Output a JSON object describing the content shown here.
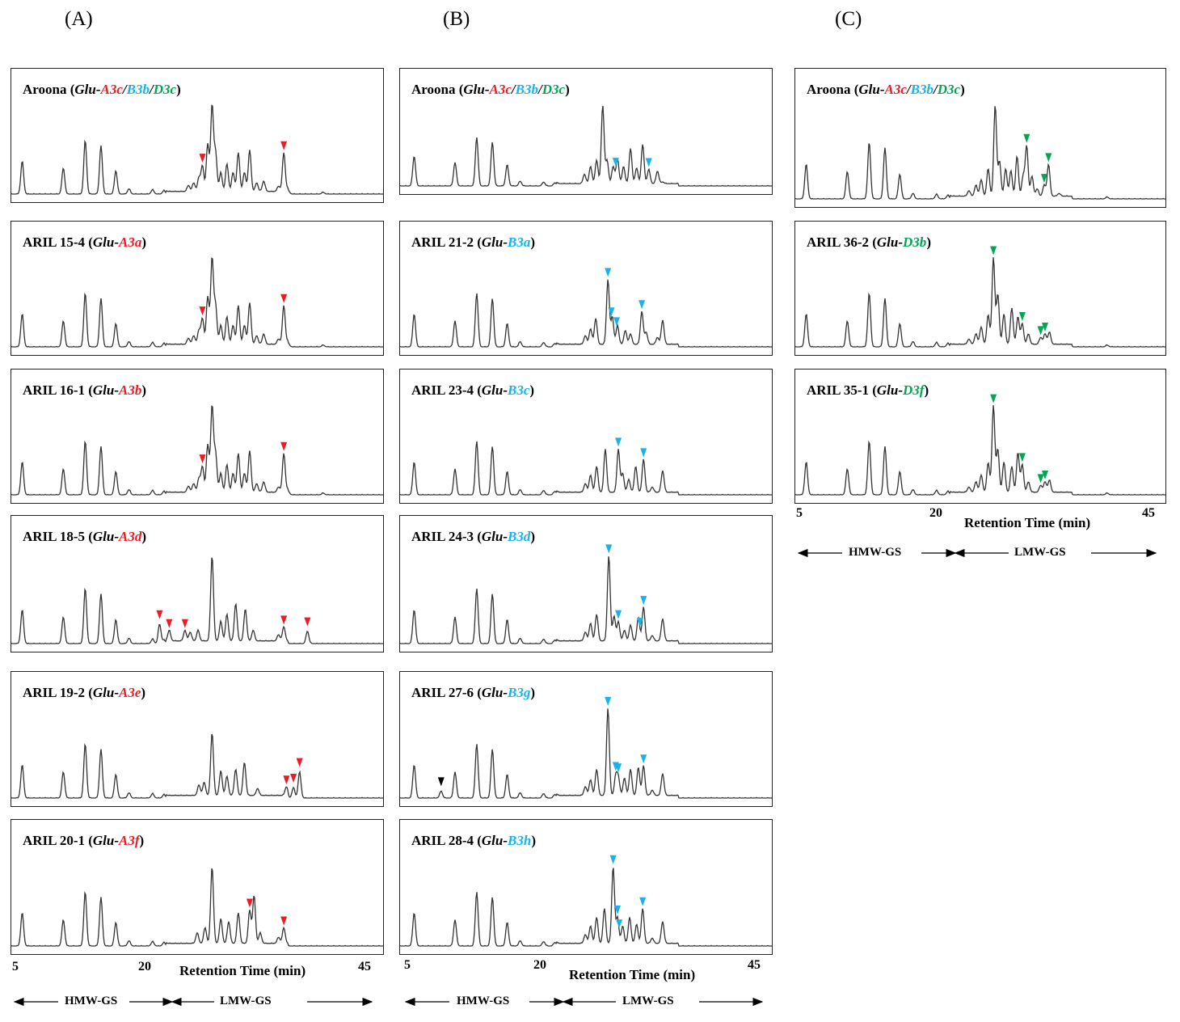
{
  "col_labels": [
    "(A)",
    "(B)",
    "(C)"
  ],
  "colors": {
    "A3": "#ed1c24",
    "B3": "#19b2ea",
    "D3": "#00a651",
    "other": "#000000",
    "trace": "#333333"
  },
  "chart_data": [
    {
      "type": "line",
      "column": "A",
      "panels": [
        {
          "line": "Aroona",
          "alleles": [
            [
              "A3c",
              "A3"
            ],
            [
              "B3b",
              "B3"
            ],
            [
              "D3c",
              "D3"
            ]
          ],
          "trace": "base",
          "markers": [
            [
              26.2,
              "A3"
            ],
            [
              35.5,
              "A3"
            ]
          ]
        },
        {
          "line": "ARIL 15-4",
          "alleles": [
            [
              "A3a",
              "A3"
            ]
          ],
          "trace": "base",
          "markers": [
            [
              26.2,
              "A3"
            ],
            [
              35.5,
              "A3"
            ]
          ]
        },
        {
          "line": "ARIL 16-1",
          "alleles": [
            [
              "A3b",
              "A3"
            ]
          ],
          "trace": "base",
          "markers": [
            [
              26.2,
              "A3"
            ],
            [
              35.5,
              "A3"
            ]
          ]
        },
        {
          "line": "ARIL 18-5",
          "alleles": [
            [
              "A3d",
              "A3"
            ]
          ],
          "trace": "a3d",
          "markers": [
            [
              21.3,
              "A3"
            ],
            [
              22.4,
              "A3"
            ],
            [
              24.2,
              "A3"
            ],
            [
              35.5,
              "A3"
            ],
            [
              38.2,
              "A3"
            ]
          ]
        },
        {
          "line": "ARIL 19-2",
          "alleles": [
            [
              "A3e",
              "A3"
            ]
          ],
          "trace": "a3e",
          "markers": [
            [
              35.8,
              "A3"
            ],
            [
              36.6,
              "A3"
            ],
            [
              37.3,
              "A3"
            ]
          ]
        },
        {
          "line": "ARIL 20-1",
          "alleles": [
            [
              "A3f",
              "A3"
            ]
          ],
          "trace": "a3f",
          "markers": [
            [
              31.6,
              "A3"
            ],
            [
              35.5,
              "A3"
            ]
          ]
        }
      ]
    },
    {
      "type": "line",
      "column": "B",
      "panels": [
        {
          "line": "Aroona",
          "alleles": [
            [
              "A3c",
              "A3"
            ],
            [
              "B3b",
              "B3"
            ],
            [
              "D3c",
              "D3"
            ]
          ],
          "trace": "baseB",
          "markers": [
            [
              28.8,
              "B3"
            ],
            [
              32.6,
              "B3"
            ]
          ]
        },
        {
          "line": "ARIL 21-2",
          "alleles": [
            [
              "B3a",
              "B3"
            ]
          ],
          "trace": "b3a",
          "markers": [
            [
              27.9,
              "B3"
            ],
            [
              28.3,
              "B3"
            ],
            [
              28.9,
              "B3"
            ],
            [
              31.8,
              "B3"
            ]
          ]
        },
        {
          "line": "ARIL 23-4",
          "alleles": [
            [
              "B3c",
              "B3"
            ]
          ],
          "trace": "b3c",
          "markers": [
            [
              29.1,
              "B3"
            ],
            [
              32.0,
              "B3"
            ]
          ]
        },
        {
          "line": "ARIL 24-3",
          "alleles": [
            [
              "B3d",
              "B3"
            ]
          ],
          "trace": "b3d",
          "markers": [
            [
              28.0,
              "B3"
            ],
            [
              29.1,
              "B3"
            ],
            [
              31.6,
              "B3"
            ],
            [
              32.0,
              "B3"
            ]
          ]
        },
        {
          "line": "ARIL 27-6",
          "alleles": [
            [
              "B3g",
              "B3"
            ]
          ],
          "trace": "b3g",
          "markers": [
            [
              8.7,
              "other"
            ],
            [
              27.9,
              "B3"
            ],
            [
              28.8,
              "B3"
            ],
            [
              29.1,
              "B3"
            ],
            [
              32.0,
              "B3"
            ]
          ]
        },
        {
          "line": "ARIL 28-4",
          "alleles": [
            [
              "B3h",
              "B3"
            ]
          ],
          "trace": "b3h",
          "markers": [
            [
              28.5,
              "B3"
            ],
            [
              29.0,
              "B3"
            ],
            [
              29.2,
              "B3"
            ],
            [
              31.9,
              "B3"
            ]
          ]
        }
      ]
    },
    {
      "type": "line",
      "column": "C",
      "panels": [
        {
          "line": "Aroona",
          "alleles": [
            [
              "A3c",
              "A3"
            ],
            [
              "B3b",
              "B3"
            ],
            [
              "D3c",
              "D3"
            ]
          ],
          "trace": "baseC",
          "markers": [
            [
              30.8,
              "D3"
            ],
            [
              32.8,
              "D3"
            ],
            [
              33.3,
              "D3"
            ]
          ]
        },
        {
          "line": "ARIL 36-2",
          "alleles": [
            [
              "D3b",
              "D3"
            ]
          ],
          "trace": "d3b",
          "markers": [
            [
              27.0,
              "D3"
            ],
            [
              30.3,
              "D3"
            ],
            [
              32.4,
              "D3"
            ],
            [
              32.9,
              "D3"
            ]
          ]
        },
        {
          "line": "ARIL 35-1",
          "alleles": [
            [
              "D3f",
              "D3"
            ]
          ],
          "trace": "d3f",
          "markers": [
            [
              27.0,
              "D3"
            ],
            [
              30.3,
              "D3"
            ],
            [
              32.4,
              "D3"
            ],
            [
              32.9,
              "D3"
            ]
          ]
        }
      ]
    }
  ],
  "axis": {
    "ticks": [
      "5",
      "20",
      "45"
    ],
    "xlabel": "Retention Time (min)"
  },
  "ranges": {
    "hmw": "HMW-GS",
    "lmw": "LMW-GS"
  },
  "glu_prefix": "Glu-"
}
